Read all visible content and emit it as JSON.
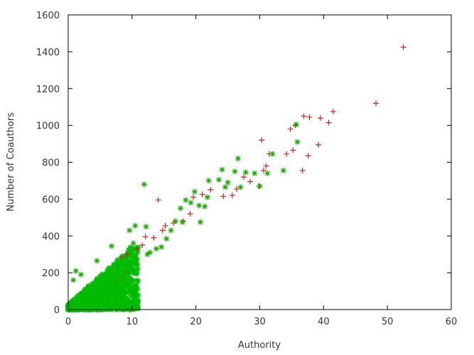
{
  "chart_data": {
    "type": "scatter",
    "title": "",
    "xlabel": "Authority",
    "ylabel": "Number of Coauthors",
    "xlim": [
      0,
      60
    ],
    "ylim": [
      0,
      1600
    ],
    "x_ticks": [
      "0",
      "10",
      "20",
      "30",
      "40",
      "50",
      "60"
    ],
    "y_ticks": [
      "0",
      "200",
      "400",
      "600",
      "800",
      "1000",
      "1200",
      "1400",
      "1600"
    ],
    "grid": false,
    "legend": "none",
    "series": [
      {
        "marker": "plus",
        "color": "#cc2222",
        "points": [
          [
            52.5,
            1425
          ],
          [
            48.2,
            1120
          ],
          [
            41.5,
            1075
          ],
          [
            40.8,
            1015
          ],
          [
            39.5,
            1040
          ],
          [
            37.8,
            1045
          ],
          [
            36.9,
            1050
          ],
          [
            39.2,
            895
          ],
          [
            37.6,
            835
          ],
          [
            36.7,
            755
          ],
          [
            35.6,
            1000
          ],
          [
            34.8,
            980
          ],
          [
            35.2,
            865
          ],
          [
            34.2,
            845
          ],
          [
            31.5,
            845
          ],
          [
            30.3,
            920
          ],
          [
            31.0,
            780
          ],
          [
            30.6,
            755
          ],
          [
            29.9,
            670
          ],
          [
            28.5,
            695
          ],
          [
            27.5,
            720
          ],
          [
            26.4,
            655
          ],
          [
            25.7,
            620
          ],
          [
            24.3,
            615
          ],
          [
            22.3,
            650
          ],
          [
            21.0,
            625
          ],
          [
            19.6,
            610
          ],
          [
            19.1,
            520
          ],
          [
            18.0,
            480
          ],
          [
            16.5,
            470
          ],
          [
            15.2,
            455
          ],
          [
            14.1,
            595
          ],
          [
            14.8,
            430
          ],
          [
            13.4,
            390
          ],
          [
            12.1,
            395
          ],
          [
            11.6,
            350
          ],
          [
            10.8,
            330
          ],
          [
            9.2,
            300
          ],
          [
            8.4,
            285
          ]
        ]
      },
      {
        "marker": "star",
        "color": "#00bb00",
        "points": [
          [
            35.7,
            1005
          ],
          [
            35.9,
            910
          ],
          [
            33.7,
            755
          ],
          [
            32.0,
            845
          ],
          [
            31.2,
            740
          ],
          [
            30.0,
            670
          ],
          [
            29.2,
            740
          ],
          [
            27.8,
            745
          ],
          [
            27.0,
            665
          ],
          [
            26.6,
            820
          ],
          [
            26.1,
            750
          ],
          [
            25.0,
            690
          ],
          [
            24.1,
            760
          ],
          [
            23.6,
            705
          ],
          [
            24.6,
            665
          ],
          [
            22.0,
            700
          ],
          [
            21.8,
            610
          ],
          [
            21.4,
            560
          ],
          [
            20.5,
            565
          ],
          [
            20.7,
            475
          ],
          [
            19.8,
            640
          ],
          [
            19.2,
            580
          ],
          [
            18.4,
            595
          ],
          [
            17.6,
            550
          ],
          [
            17.9,
            475
          ],
          [
            16.8,
            480
          ],
          [
            16.1,
            430
          ],
          [
            15.4,
            385
          ],
          [
            14.6,
            340
          ],
          [
            13.8,
            330
          ],
          [
            12.8,
            310
          ],
          [
            12.4,
            300
          ],
          [
            11.9,
            680
          ],
          [
            12.2,
            450
          ],
          [
            10.5,
            455
          ],
          [
            9.6,
            430
          ],
          [
            10.2,
            360
          ],
          [
            6.8,
            345
          ],
          [
            4.5,
            265
          ],
          [
            2.0,
            190
          ],
          [
            1.2,
            210
          ],
          [
            0.8,
            160
          ],
          [
            9.1,
            200
          ],
          [
            8.3,
            170
          ],
          [
            7.5,
            150
          ]
        ]
      }
    ],
    "dense_cluster": {
      "color": "#00bb00",
      "x_range": [
        0,
        11
      ],
      "y_range": [
        0,
        340
      ]
    }
  }
}
